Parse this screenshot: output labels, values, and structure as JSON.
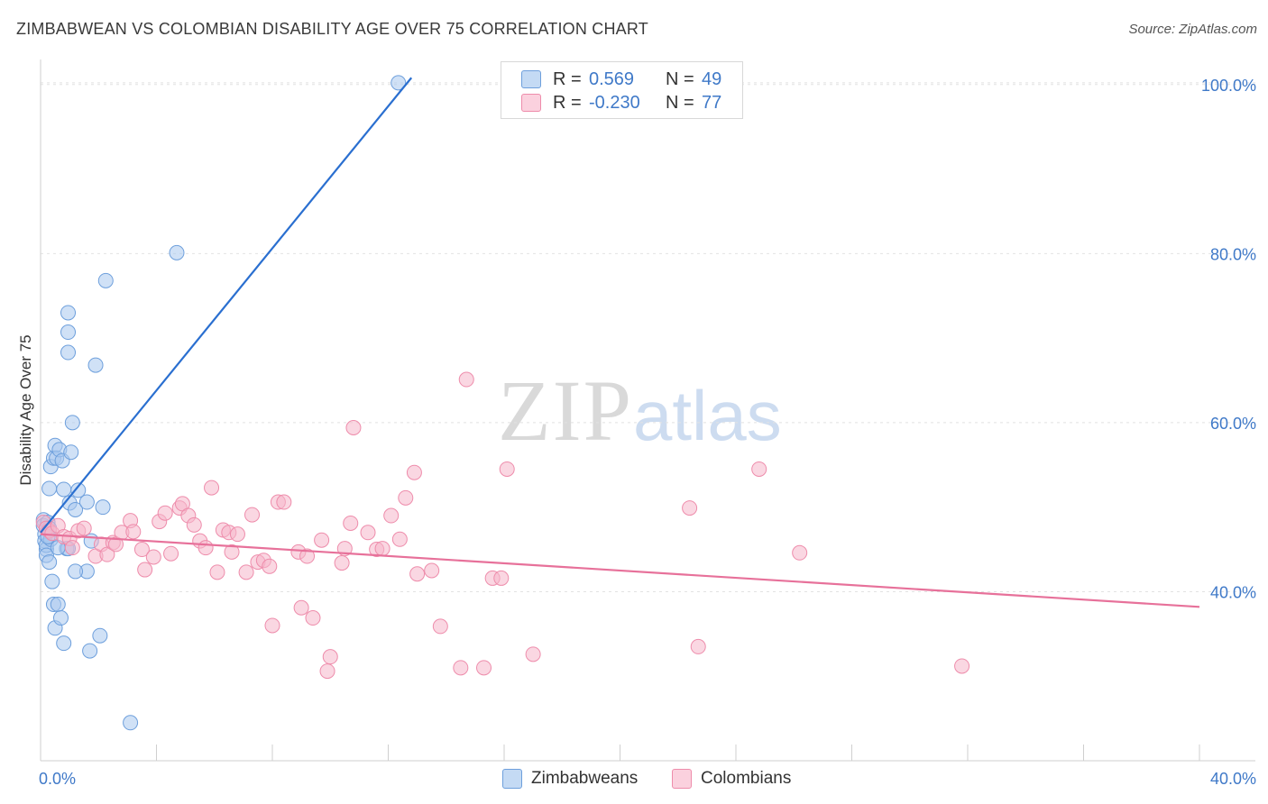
{
  "title": "ZIMBABWEAN VS COLOMBIAN DISABILITY AGE OVER 75 CORRELATION CHART",
  "source": "Source: ZipAtlas.com",
  "watermark": {
    "zip": "ZIP",
    "atlas": "atlas"
  },
  "legend": {
    "rows": [
      {
        "r_label": "R =",
        "r_value": "0.569",
        "n_label": "N =",
        "n_value": "49",
        "color": "#a9c8ee"
      },
      {
        "r_label": "R =",
        "r_value": "-0.230",
        "n_label": "N =",
        "n_value": "77",
        "color": "#f6b7cb"
      }
    ]
  },
  "bottom_legend": [
    {
      "label": "Zimbabweans",
      "color": "#a9c8ee"
    },
    {
      "label": "Colombians",
      "color": "#f6b7cb"
    }
  ],
  "chart_data": {
    "type": "scatter",
    "title": "ZIMBABWEAN VS COLOMBIAN DISABILITY AGE OVER 75 CORRELATION CHART",
    "xlabel": "",
    "ylabel": "Disability Age Over 75",
    "xlim": [
      0,
      40
    ],
    "ylim": [
      20,
      102
    ],
    "x_tick_labels": [
      {
        "value": 0,
        "label": "0.0%"
      },
      {
        "value": 40,
        "label": "40.0%"
      }
    ],
    "y_tick_labels": [
      {
        "value": 40,
        "label": "40.0%"
      },
      {
        "value": 60,
        "label": "60.0%"
      },
      {
        "value": 80,
        "label": "80.0%"
      },
      {
        "value": 100,
        "label": "100.0%"
      }
    ],
    "grid": true,
    "legend_position": "top-center",
    "series": [
      {
        "name": "Zimbabweans",
        "color": "#a9c8ee",
        "stroke": "#6d9fdc",
        "trend_color": "#2a6fd0",
        "trend": {
          "x1": 0.0,
          "y1": 47.0,
          "x2": 12.8,
          "y2": 100.8
        },
        "points": [
          [
            0.1,
            48.5
          ],
          [
            0.1,
            47.8
          ],
          [
            0.15,
            46.8
          ],
          [
            0.15,
            46.0
          ],
          [
            0.2,
            45.0
          ],
          [
            0.2,
            45.5
          ],
          [
            0.25,
            48.2
          ],
          [
            0.3,
            47.5
          ],
          [
            0.35,
            46.2
          ],
          [
            0.2,
            44.3
          ],
          [
            0.3,
            52.2
          ],
          [
            0.35,
            54.8
          ],
          [
            0.45,
            55.8
          ],
          [
            0.5,
            57.3
          ],
          [
            0.55,
            55.8
          ],
          [
            0.65,
            56.8
          ],
          [
            0.75,
            55.5
          ],
          [
            0.4,
            41.2
          ],
          [
            0.45,
            38.5
          ],
          [
            0.5,
            35.7
          ],
          [
            0.6,
            38.5
          ],
          [
            0.7,
            36.9
          ],
          [
            0.8,
            33.9
          ],
          [
            0.9,
            45.1
          ],
          [
            0.95,
            45.1
          ],
          [
            0.8,
            52.1
          ],
          [
            1.0,
            50.5
          ],
          [
            1.2,
            49.7
          ],
          [
            1.1,
            60.0
          ],
          [
            1.05,
            56.5
          ],
          [
            1.6,
            50.6
          ],
          [
            1.75,
            46.0
          ],
          [
            1.6,
            42.4
          ],
          [
            1.2,
            42.4
          ],
          [
            1.7,
            33.0
          ],
          [
            2.05,
            34.8
          ],
          [
            2.15,
            50.0
          ],
          [
            0.95,
            73.0
          ],
          [
            0.95,
            70.7
          ],
          [
            0.95,
            68.3
          ],
          [
            1.9,
            66.8
          ],
          [
            2.25,
            76.8
          ],
          [
            4.7,
            80.1
          ],
          [
            12.35,
            100.2
          ],
          [
            3.1,
            24.5
          ],
          [
            0.3,
            43.5
          ],
          [
            0.6,
            45.2
          ],
          [
            1.3,
            52.0
          ],
          [
            0.25,
            46.5
          ]
        ]
      },
      {
        "name": "Colombians",
        "color": "#f6b7cb",
        "stroke": "#ee8cab",
        "trend_color": "#e7719a",
        "trend": {
          "x1": 0.0,
          "y1": 46.8,
          "x2": 40.0,
          "y2": 38.2
        },
        "points": [
          [
            0.1,
            48.2
          ],
          [
            0.2,
            47.5
          ],
          [
            0.3,
            47.2
          ],
          [
            0.4,
            46.9
          ],
          [
            0.6,
            47.8
          ],
          [
            0.8,
            46.5
          ],
          [
            1.0,
            46.3
          ],
          [
            1.1,
            45.2
          ],
          [
            1.3,
            47.2
          ],
          [
            1.5,
            47.5
          ],
          [
            1.9,
            44.2
          ],
          [
            2.1,
            45.6
          ],
          [
            2.3,
            44.4
          ],
          [
            2.5,
            45.8
          ],
          [
            2.6,
            45.6
          ],
          [
            2.8,
            47.0
          ],
          [
            3.1,
            48.4
          ],
          [
            3.2,
            47.1
          ],
          [
            3.5,
            45.0
          ],
          [
            3.6,
            42.6
          ],
          [
            3.9,
            44.1
          ],
          [
            4.1,
            48.3
          ],
          [
            4.3,
            49.3
          ],
          [
            4.5,
            44.5
          ],
          [
            4.8,
            49.9
          ],
          [
            4.9,
            50.4
          ],
          [
            5.1,
            49.0
          ],
          [
            5.3,
            47.9
          ],
          [
            5.5,
            46.0
          ],
          [
            5.7,
            45.2
          ],
          [
            5.9,
            52.3
          ],
          [
            6.1,
            42.3
          ],
          [
            6.3,
            47.3
          ],
          [
            6.5,
            47.0
          ],
          [
            6.6,
            44.7
          ],
          [
            6.8,
            46.8
          ],
          [
            7.1,
            42.3
          ],
          [
            7.3,
            49.1
          ],
          [
            7.5,
            43.5
          ],
          [
            7.7,
            43.7
          ],
          [
            7.9,
            43.0
          ],
          [
            8.2,
            50.6
          ],
          [
            8.4,
            50.6
          ],
          [
            8.0,
            36.0
          ],
          [
            8.9,
            44.7
          ],
          [
            9.0,
            38.1
          ],
          [
            9.2,
            44.2
          ],
          [
            9.4,
            36.9
          ],
          [
            9.7,
            46.1
          ],
          [
            10.0,
            32.3
          ],
          [
            9.9,
            30.6
          ],
          [
            10.4,
            43.4
          ],
          [
            10.5,
            45.1
          ],
          [
            10.7,
            48.1
          ],
          [
            10.8,
            59.4
          ],
          [
            11.3,
            47.0
          ],
          [
            11.6,
            45.0
          ],
          [
            11.8,
            45.1
          ],
          [
            12.1,
            49.0
          ],
          [
            12.4,
            46.2
          ],
          [
            12.6,
            51.1
          ],
          [
            12.9,
            54.1
          ],
          [
            13.0,
            42.1
          ],
          [
            13.5,
            42.5
          ],
          [
            13.8,
            35.9
          ],
          [
            14.5,
            31.0
          ],
          [
            14.7,
            65.1
          ],
          [
            15.3,
            31.0
          ],
          [
            15.6,
            41.6
          ],
          [
            15.9,
            41.6
          ],
          [
            16.1,
            54.5
          ],
          [
            17.0,
            32.6
          ],
          [
            22.4,
            49.9
          ],
          [
            22.7,
            33.5
          ],
          [
            24.8,
            54.5
          ],
          [
            26.2,
            44.6
          ],
          [
            31.8,
            31.2
          ]
        ]
      }
    ]
  }
}
